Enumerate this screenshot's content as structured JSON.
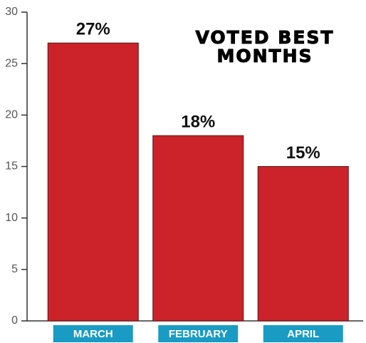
{
  "chart_data": {
    "type": "bar",
    "title": "VOTED BEST MONTHS",
    "categories": [
      "MARCH",
      "FEBRUARY",
      "APRIL"
    ],
    "values": [
      27,
      18,
      15
    ],
    "value_labels": [
      "27%",
      "18%",
      "15%"
    ],
    "color": "#cc2229",
    "label_color": "#1a9bc4",
    "ylim": [
      0,
      30
    ],
    "yticks": [
      0,
      5,
      10,
      15,
      20,
      25,
      30
    ]
  }
}
